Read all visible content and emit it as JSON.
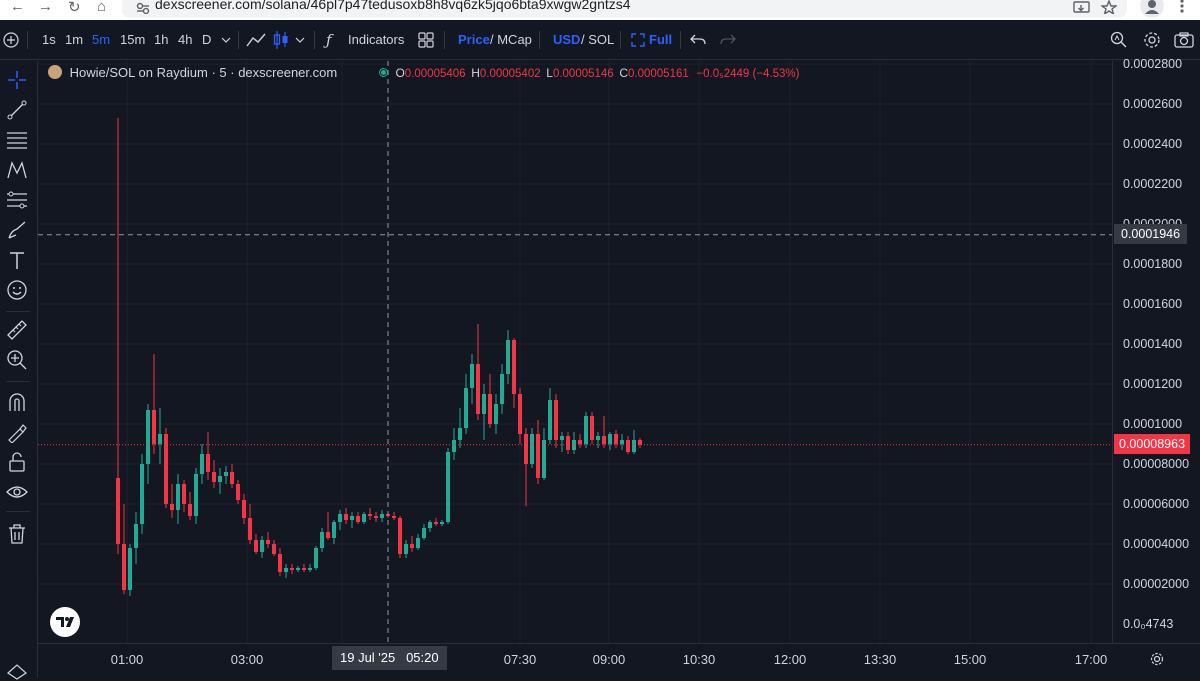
{
  "browser": {
    "url": "dexscreener.com/solana/46pl7p47tedusoxb8h8vq6zk5jqo6bta9xwgw2gntzs4",
    "back_icon": "←",
    "forward_icon": "→",
    "reload_icon": "↻",
    "home_icon": "⌂"
  },
  "toolbar": {
    "intervals": [
      "1s",
      "1m",
      "5m",
      "15m",
      "1h",
      "4h",
      "D"
    ],
    "active_interval": "5m",
    "indicators_label": "Indicators",
    "price_label": "Price",
    "mcap_label": "/ MCap",
    "usd_label": "USD",
    "sol_label": "/ SOL",
    "full_label": "Full"
  },
  "legend": {
    "title": "Howie/SOL on Raydium · 5 · dexscreener.com",
    "o_key": "O",
    "o_val": "0.00005406",
    "h_key": "H",
    "h_val": "0.00005402",
    "l_key": "L",
    "l_val": "0.00005146",
    "c_key": "C",
    "c_val": "0.00005161",
    "change": "−0.0₅2449 (−4.53%)"
  },
  "y_axis": {
    "ticks": [
      "0.0002800",
      "0.0002600",
      "0.0002400",
      "0.0002200",
      "0.0002000",
      "0.0001800",
      "0.0001600",
      "0.0001400",
      "0.0001200",
      "0.0001000",
      "0.00008000",
      "0.00006000",
      "0.00004000",
      "0.00002000",
      "0.0₀4743"
    ],
    "crosshair_label": "0.0001946",
    "last_price_label": "0.00008963"
  },
  "x_axis": {
    "ticks": [
      "01:00",
      "03:00",
      "04:",
      "07:30",
      "09:00",
      "10:30",
      "12:00",
      "13:30",
      "15:00",
      "17:00"
    ],
    "crosshair_label": "19 Jul '25   05:20"
  },
  "colors": {
    "up": "#22ab94",
    "down": "#f23645",
    "accent": "#2962ff",
    "background": "#131722"
  },
  "chart_data": {
    "type": "candlestick",
    "interval": "5m",
    "pair": "Howie/SOL",
    "ylim": [
      1e-05,
      0.00028
    ],
    "crosshair": {
      "time": "19 Jul '25 05:20",
      "price": 0.0001946
    },
    "last_price": 8.963e-05,
    "candles": [
      {
        "o": 7.3e-05,
        "h": 0.000253,
        "l": 3.5e-05,
        "c": 4e-05
      },
      {
        "o": 4e-05,
        "h": 6e-05,
        "l": 1.5e-05,
        "c": 1.7e-05
      },
      {
        "o": 1.7e-05,
        "h": 4e-05,
        "l": 1.4e-05,
        "c": 3.8e-05
      },
      {
        "o": 3.8e-05,
        "h": 5.6e-05,
        "l": 3e-05,
        "c": 5e-05
      },
      {
        "o": 5e-05,
        "h": 8.5e-05,
        "l": 4.5e-05,
        "c": 8e-05
      },
      {
        "o": 8e-05,
        "h": 0.00011,
        "l": 7e-05,
        "c": 0.000107
      },
      {
        "o": 0.000107,
        "h": 0.000135,
        "l": 8.5e-05,
        "c": 9e-05
      },
      {
        "o": 9e-05,
        "h": 0.000108,
        "l": 8e-05,
        "c": 9.5e-05
      },
      {
        "o": 9.5e-05,
        "h": 9.8e-05,
        "l": 5.8e-05,
        "c": 6e-05
      },
      {
        "o": 6e-05,
        "h": 7e-05,
        "l": 5.3e-05,
        "c": 5.7e-05
      },
      {
        "o": 5.7e-05,
        "h": 7.5e-05,
        "l": 5e-05,
        "c": 7e-05
      },
      {
        "o": 7e-05,
        "h": 7.2e-05,
        "l": 5.6e-05,
        "c": 6e-05
      },
      {
        "o": 6e-05,
        "h": 6.6e-05,
        "l": 5.2e-05,
        "c": 5.4e-05
      },
      {
        "o": 5.4e-05,
        "h": 7.8e-05,
        "l": 5e-05,
        "c": 7.5e-05
      },
      {
        "o": 7.5e-05,
        "h": 9e-05,
        "l": 7e-05,
        "c": 8.5e-05
      },
      {
        "o": 8.5e-05,
        "h": 9.6e-05,
        "l": 7.2e-05,
        "c": 7.6e-05
      },
      {
        "o": 7.6e-05,
        "h": 8.2e-05,
        "l": 6.8e-05,
        "c": 7.1e-05
      },
      {
        "o": 7.1e-05,
        "h": 7.8e-05,
        "l": 6.5e-05,
        "c": 7.4e-05
      },
      {
        "o": 7.4e-05,
        "h": 7.9e-05,
        "l": 7e-05,
        "c": 7.6e-05
      },
      {
        "o": 7.6e-05,
        "h": 8e-05,
        "l": 6.8e-05,
        "c": 7e-05
      },
      {
        "o": 7e-05,
        "h": 7.2e-05,
        "l": 6e-05,
        "c": 6.2e-05
      },
      {
        "o": 6.2e-05,
        "h": 6.5e-05,
        "l": 5e-05,
        "c": 5.3e-05
      },
      {
        "o": 5.3e-05,
        "h": 6e-05,
        "l": 4e-05,
        "c": 4.2e-05
      },
      {
        "o": 4.2e-05,
        "h": 4.5e-05,
        "l": 3.5e-05,
        "c": 3.6e-05
      },
      {
        "o": 3.6e-05,
        "h": 4.4e-05,
        "l": 3.3e-05,
        "c": 4.2e-05
      },
      {
        "o": 4.2e-05,
        "h": 4.6e-05,
        "l": 3.8e-05,
        "c": 4e-05
      },
      {
        "o": 4e-05,
        "h": 4.2e-05,
        "l": 3.4e-05,
        "c": 3.5e-05
      },
      {
        "o": 3.5e-05,
        "h": 3.8e-05,
        "l": 2.4e-05,
        "c": 2.6e-05
      },
      {
        "o": 2.6e-05,
        "h": 3e-05,
        "l": 2.3e-05,
        "c": 2.8e-05
      },
      {
        "o": 2.8e-05,
        "h": 3e-05,
        "l": 2.5e-05,
        "c": 2.7e-05
      },
      {
        "o": 2.7e-05,
        "h": 2.9e-05,
        "l": 2.6e-05,
        "c": 2.8e-05
      },
      {
        "o": 2.8e-05,
        "h": 3e-05,
        "l": 2.6e-05,
        "c": 2.7e-05
      },
      {
        "o": 2.7e-05,
        "h": 3e-05,
        "l": 2.6e-05,
        "c": 2.8e-05
      },
      {
        "o": 2.8e-05,
        "h": 3.9e-05,
        "l": 2.7e-05,
        "c": 3.8e-05
      },
      {
        "o": 3.8e-05,
        "h": 4.8e-05,
        "l": 3.6e-05,
        "c": 4.6e-05
      },
      {
        "o": 4.6e-05,
        "h": 5.6e-05,
        "l": 4.2e-05,
        "c": 4.3e-05
      },
      {
        "o": 4.3e-05,
        "h": 5.2e-05,
        "l": 4e-05,
        "c": 5.1e-05
      },
      {
        "o": 5.1e-05,
        "h": 5.7e-05,
        "l": 4.7e-05,
        "c": 5.5e-05
      },
      {
        "o": 5.5e-05,
        "h": 5.8e-05,
        "l": 5e-05,
        "c": 5.2e-05
      },
      {
        "o": 5.2e-05,
        "h": 5.6e-05,
        "l": 4.8e-05,
        "c": 5.4e-05
      },
      {
        "o": 5.4e-05,
        "h": 5.6e-05,
        "l": 5e-05,
        "c": 5.1e-05
      },
      {
        "o": 5.1e-05,
        "h": 5.6e-05,
        "l": 5e-05,
        "c": 5.5e-05
      },
      {
        "o": 5.5e-05,
        "h": 5.8e-05,
        "l": 5.2e-05,
        "c": 5.4e-05
      },
      {
        "o": 5.4e-05,
        "h": 5.6e-05,
        "l": 5.1e-05,
        "c": 5.3e-05
      },
      {
        "o": 5.3e-05,
        "h": 5.7e-05,
        "l": 5.1e-05,
        "c": 5.5e-05
      },
      {
        "o": 5.5e-05,
        "h": 5.6e-05,
        "l": 5.3e-05,
        "c": 5.4e-05
      },
      {
        "o": 5.4e-05,
        "h": 5.6e-05,
        "l": 5.2e-05,
        "c": 5.3e-05
      },
      {
        "o": 5.3e-05,
        "h": 5.4e-05,
        "l": 3.3e-05,
        "c": 3.5e-05
      },
      {
        "o": 3.5e-05,
        "h": 4.2e-05,
        "l": 3.3e-05,
        "c": 4e-05
      },
      {
        "o": 4e-05,
        "h": 4.4e-05,
        "l": 3.6e-05,
        "c": 3.8e-05
      },
      {
        "o": 3.8e-05,
        "h": 4.5e-05,
        "l": 3.7e-05,
        "c": 4.3e-05
      },
      {
        "o": 4.3e-05,
        "h": 5e-05,
        "l": 4.2e-05,
        "c": 4.8e-05
      },
      {
        "o": 4.8e-05,
        "h": 5.2e-05,
        "l": 4.6e-05,
        "c": 5.1e-05
      },
      {
        "o": 5.1e-05,
        "h": 5.3e-05,
        "l": 4.9e-05,
        "c": 5e-05
      },
      {
        "o": 5e-05,
        "h": 5.2e-05,
        "l": 4.9e-05,
        "c": 5.1e-05
      },
      {
        "o": 5.1e-05,
        "h": 8.8e-05,
        "l": 5e-05,
        "c": 8.6e-05
      },
      {
        "o": 8.6e-05,
        "h": 9.8e-05,
        "l": 8.2e-05,
        "c": 9.2e-05
      },
      {
        "o": 9.2e-05,
        "h": 0.000108,
        "l": 8.8e-05,
        "c": 9.8e-05
      },
      {
        "o": 9.8e-05,
        "h": 0.000125,
        "l": 9.5e-05,
        "c": 0.000118
      },
      {
        "o": 0.000118,
        "h": 0.000135,
        "l": 0.00011,
        "c": 0.00013
      },
      {
        "o": 0.00013,
        "h": 0.00015,
        "l": 0.000102,
        "c": 0.000105
      },
      {
        "o": 0.000105,
        "h": 0.00012,
        "l": 9.2e-05,
        "c": 0.000115
      },
      {
        "o": 0.000115,
        "h": 0.000125,
        "l": 9.8e-05,
        "c": 0.0001
      },
      {
        "o": 0.0001,
        "h": 0.000115,
        "l": 9.5e-05,
        "c": 0.00011
      },
      {
        "o": 0.00011,
        "h": 0.00013,
        "l": 0.000105,
        "c": 0.000125
      },
      {
        "o": 0.000125,
        "h": 0.000147,
        "l": 0.00012,
        "c": 0.000142
      },
      {
        "o": 0.000142,
        "h": 0.000143,
        "l": 0.000108,
        "c": 0.000115
      },
      {
        "o": 0.000115,
        "h": 0.000118,
        "l": 9e-05,
        "c": 9.5e-05
      },
      {
        "o": 9.5e-05,
        "h": 9.8e-05,
        "l": 5.9e-05,
        "c": 8e-05
      },
      {
        "o": 8e-05,
        "h": 9.8e-05,
        "l": 7.8e-05,
        "c": 9.5e-05
      },
      {
        "o": 9.5e-05,
        "h": 0.000102,
        "l": 7e-05,
        "c": 7.3e-05
      },
      {
        "o": 7.3e-05,
        "h": 9.8e-05,
        "l": 7.2e-05,
        "c": 9.2e-05
      },
      {
        "o": 9.2e-05,
        "h": 0.000118,
        "l": 9e-05,
        "c": 0.000112
      },
      {
        "o": 0.000112,
        "h": 0.000115,
        "l": 8.8e-05,
        "c": 9.2e-05
      },
      {
        "o": 9.2e-05,
        "h": 9.6e-05,
        "l": 8.6e-05,
        "c": 9.4e-05
      },
      {
        "o": 9.4e-05,
        "h": 9.6e-05,
        "l": 8.5e-05,
        "c": 8.7e-05
      },
      {
        "o": 8.7e-05,
        "h": 9.6e-05,
        "l": 8.5e-05,
        "c": 9.2e-05
      },
      {
        "o": 9.2e-05,
        "h": 9.5e-05,
        "l": 8.8e-05,
        "c": 9e-05
      },
      {
        "o": 9e-05,
        "h": 0.000106,
        "l": 8.8e-05,
        "c": 0.000104
      },
      {
        "o": 0.000104,
        "h": 0.000106,
        "l": 9e-05,
        "c": 9.2e-05
      },
      {
        "o": 9.2e-05,
        "h": 9.6e-05,
        "l": 8.8e-05,
        "c": 9.4e-05
      },
      {
        "o": 9.4e-05,
        "h": 0.000104,
        "l": 8.8e-05,
        "c": 9e-05
      },
      {
        "o": 9e-05,
        "h": 9.6e-05,
        "l": 8.7e-05,
        "c": 9.5e-05
      },
      {
        "o": 9.5e-05,
        "h": 9.7e-05,
        "l": 8.8e-05,
        "c": 9e-05
      },
      {
        "o": 9e-05,
        "h": 9.5e-05,
        "l": 8.7e-05,
        "c": 9.2e-05
      },
      {
        "o": 9.2e-05,
        "h": 9.4e-05,
        "l": 8.5e-05,
        "c": 8.6e-05
      },
      {
        "o": 8.6e-05,
        "h": 9.7e-05,
        "l": 8.5e-05,
        "c": 9.2e-05
      },
      {
        "o": 9.2e-05,
        "h": 9.3e-05,
        "l": 8.8e-05,
        "c": 8.96e-05
      }
    ]
  }
}
